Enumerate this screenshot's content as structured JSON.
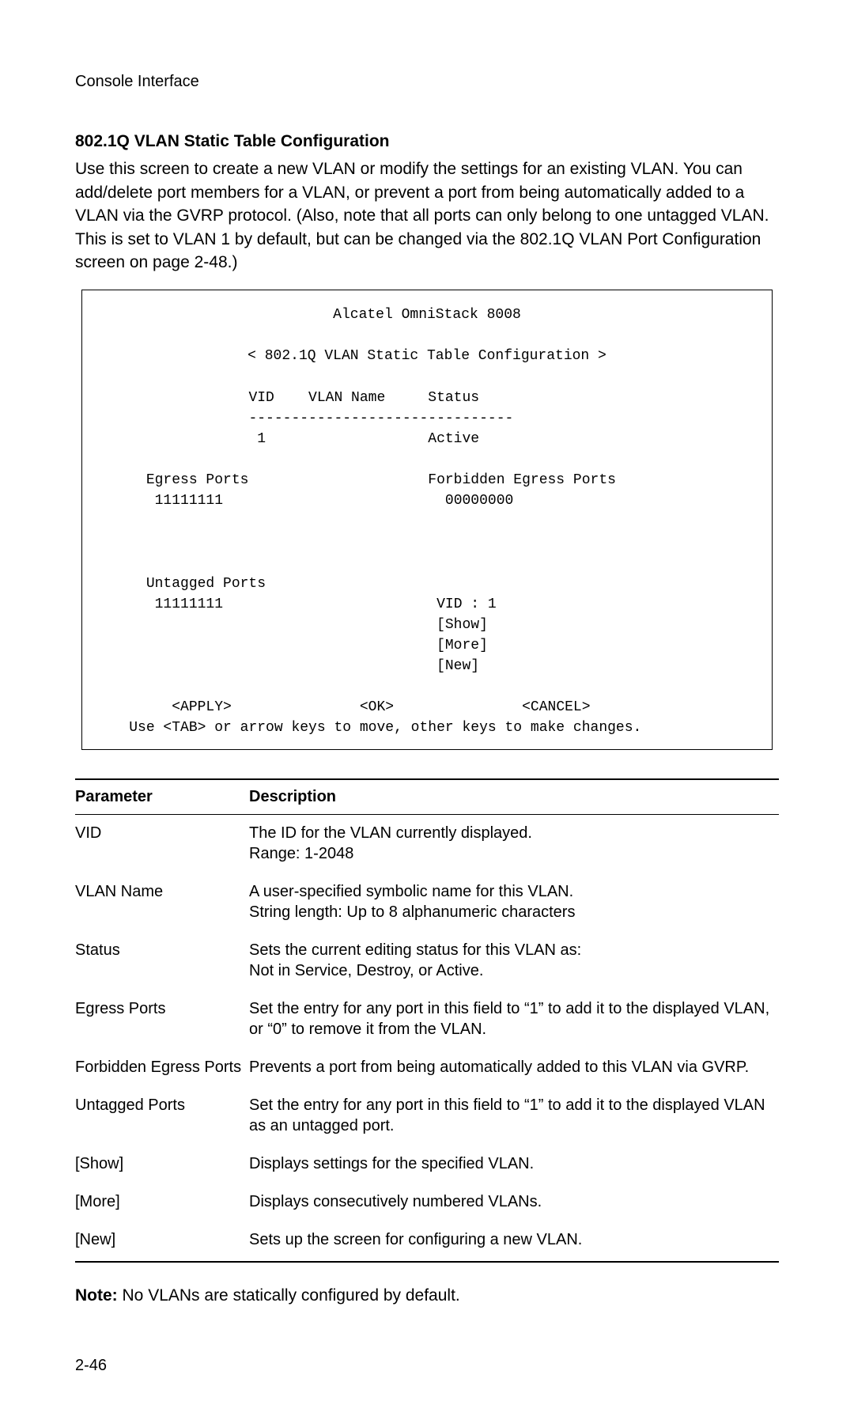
{
  "header": {
    "label": "Console Interface"
  },
  "section": {
    "title": "802.1Q VLAN Static Table Configuration",
    "body": "Use this screen to create a new VLAN or modify the settings for an existing VLAN. You can add/delete port members for a VLAN, or prevent a port from being automatically added to a VLAN via the GVRP protocol. (Also, note that all ports can only belong to one untagged VLAN. This is set to VLAN 1 by default, but can be changed via the 802.1Q VLAN Port Configuration screen on page 2-48.)"
  },
  "console": {
    "device_title": "Alcatel OmniStack 8008",
    "screen_title": "< 802.1Q VLAN Static Table Configuration >",
    "header_row": "VID    VLAN Name     Status",
    "divider": "-------------------------------",
    "row1": " 1                   Active",
    "egress_label": "Egress Ports",
    "forbidden_label": "Forbidden Egress Ports",
    "egress_value": "11111111",
    "forbidden_value": "00000000",
    "untagged_label": "Untagged Ports",
    "untagged_value": "11111111",
    "vid_field": "VID : 1",
    "show": "[Show]",
    "more": "[More]",
    "new": "[New]",
    "apply": "<APPLY>",
    "ok": "<OK>",
    "cancel": "<CANCEL>",
    "hint": "Use <TAB> or arrow keys to move, other keys to make changes."
  },
  "table": {
    "columns": [
      "Parameter",
      "Description"
    ],
    "rows": [
      {
        "param": "VID",
        "desc": "The ID for the VLAN currently displayed.\nRange: 1-2048"
      },
      {
        "param": "VLAN Name",
        "desc": "A user-specified symbolic name for this VLAN.\nString length: Up to 8 alphanumeric characters"
      },
      {
        "param": "Status",
        "desc": "Sets the current editing status for this VLAN as:\nNot in Service, Destroy, or Active."
      },
      {
        "param": "Egress Ports",
        "desc": "Set the entry for any port in this field to “1” to add it to the displayed VLAN, or “0” to remove it from the VLAN."
      },
      {
        "param": "Forbidden Egress Ports",
        "desc": "Prevents a port from being automatically added to this VLAN via GVRP."
      },
      {
        "param": "Untagged Ports",
        "desc": "Set the entry for any port in this field to “1” to add it to the displayed VLAN as an untagged port."
      },
      {
        "param": "[Show]",
        "desc": "Displays settings for the specified VLAN."
      },
      {
        "param": "[More]",
        "desc": "Displays consecutively numbered VLANs."
      },
      {
        "param": "[New]",
        "desc": "Sets up the screen for configuring a new VLAN."
      }
    ]
  },
  "note": {
    "label": "Note:",
    "text": "No VLANs are statically configured by default."
  },
  "page_number": "2-46"
}
